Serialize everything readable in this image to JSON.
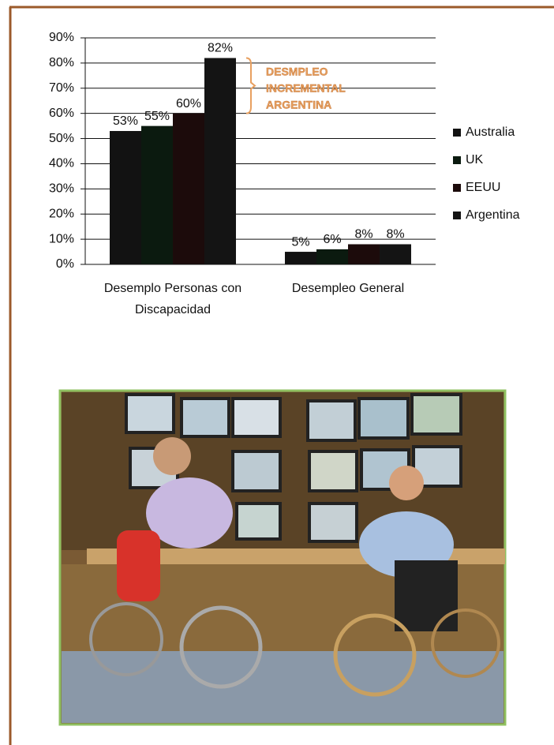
{
  "chart_data": {
    "type": "bar",
    "categories": [
      "Desemplo Personas con Discapacidad",
      "Desempleo General"
    ],
    "series": [
      {
        "name": "Australia",
        "color": "#121212",
        "values": [
          53,
          5
        ],
        "value_labels": [
          "53%",
          "5%"
        ]
      },
      {
        "name": "UK",
        "color": "#0b1a0f",
        "values": [
          55,
          6
        ],
        "value_labels": [
          "55%",
          "6%"
        ]
      },
      {
        "name": "EEUU",
        "color": "#1c0b0b",
        "values": [
          60,
          8
        ],
        "value_labels": [
          "60%",
          "8%"
        ]
      },
      {
        "name": "Argentina",
        "color": "#141414",
        "values": [
          82,
          8
        ],
        "value_labels": [
          "82%",
          "8%"
        ]
      }
    ],
    "ylim": [
      0,
      90
    ],
    "yticks": [
      {
        "value": 0,
        "label": "0%"
      },
      {
        "value": 10,
        "label": "10%"
      },
      {
        "value": 20,
        "label": "20%"
      },
      {
        "value": 30,
        "label": "30%"
      },
      {
        "value": 40,
        "label": "40%"
      },
      {
        "value": 50,
        "label": "50%"
      },
      {
        "value": 60,
        "label": "60%"
      },
      {
        "value": 70,
        "label": "70%"
      },
      {
        "value": 80,
        "label": "80%"
      },
      {
        "value": 90,
        "label": "90%"
      }
    ],
    "grid": true,
    "legend": "right",
    "annotation": {
      "lines": [
        "DESMPLEO",
        "INCREMENTAL",
        "ARGENTINA"
      ],
      "color": "#e8a060"
    }
  }
}
